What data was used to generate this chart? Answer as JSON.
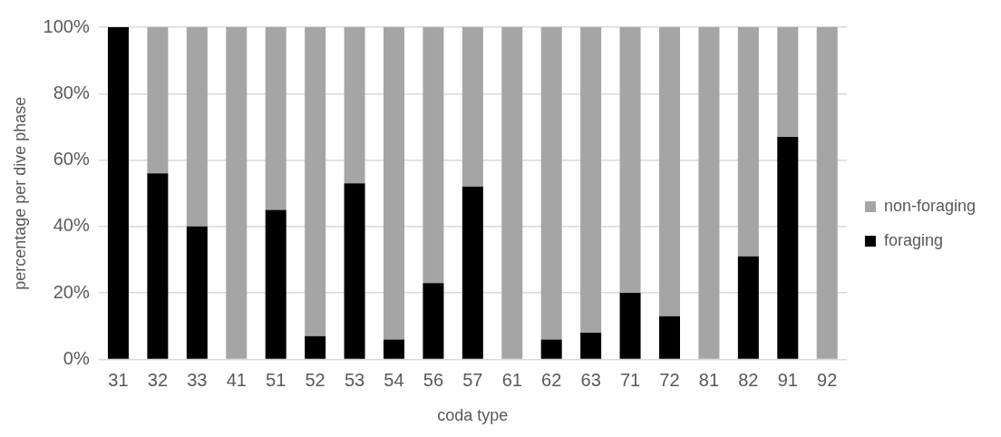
{
  "chart_data": {
    "type": "bar",
    "stacked": true,
    "xlabel": "coda type",
    "ylabel": "percentage per dive phase",
    "categories": [
      "31",
      "32",
      "33",
      "41",
      "51",
      "52",
      "53",
      "54",
      "56",
      "57",
      "61",
      "62",
      "63",
      "71",
      "72",
      "81",
      "82",
      "91",
      "92"
    ],
    "series": [
      {
        "name": "foraging",
        "color": "#000000",
        "values": [
          100,
          56,
          40,
          0,
          45,
          7,
          53,
          6,
          23,
          52,
          0,
          6,
          8,
          20,
          13,
          0,
          31,
          67,
          0
        ]
      },
      {
        "name": "non-foraging",
        "color": "#a5a5a5",
        "values": [
          0,
          44,
          60,
          100,
          55,
          93,
          47,
          94,
          77,
          48,
          100,
          94,
          92,
          80,
          87,
          100,
          69,
          33,
          100
        ]
      }
    ],
    "ylim": [
      0,
      100
    ],
    "yticks": [
      {
        "value": 0,
        "label": "0%"
      },
      {
        "value": 20,
        "label": "20%"
      },
      {
        "value": 40,
        "label": "40%"
      },
      {
        "value": 60,
        "label": "60%"
      },
      {
        "value": 80,
        "label": "80%"
      },
      {
        "value": 100,
        "label": "100%"
      }
    ],
    "grid": "y",
    "legend": "right"
  }
}
